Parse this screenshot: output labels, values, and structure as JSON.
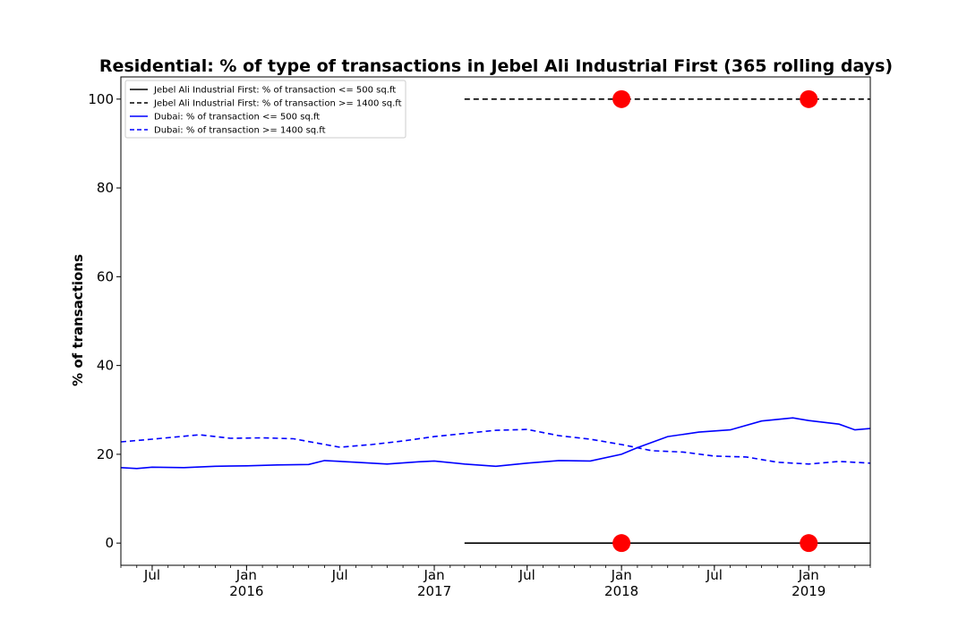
{
  "chart_data": {
    "type": "line",
    "title": "Residential: % of type of transactions in Jebel Ali Industrial First (365 rolling days)",
    "ylabel": "% of transactions",
    "xlabel": "",
    "ylim": [
      -5,
      105
    ],
    "xlim": [
      "2015-05-01",
      "2019-05-01"
    ],
    "yticks": [
      0,
      20,
      40,
      60,
      80,
      100
    ],
    "xticks": [
      {
        "date": "2015-07-01",
        "label": "Jul",
        "year": ""
      },
      {
        "date": "2016-01-01",
        "label": "Jan",
        "year": "2016"
      },
      {
        "date": "2016-07-01",
        "label": "Jul",
        "year": ""
      },
      {
        "date": "2017-01-01",
        "label": "Jan",
        "year": "2017"
      },
      {
        "date": "2017-07-01",
        "label": "Jul",
        "year": ""
      },
      {
        "date": "2018-01-01",
        "label": "Jan",
        "year": "2018"
      },
      {
        "date": "2018-07-01",
        "label": "Jul",
        "year": ""
      },
      {
        "date": "2019-01-01",
        "label": "Jan",
        "year": "2019"
      }
    ],
    "grid": false,
    "legend_position": "top-left",
    "series": [
      {
        "name": "Jebel Ali Industrial First: % of transaction <= 500 sq.ft",
        "color": "#000000",
        "dash": "solid",
        "x": [
          "2017-03-01",
          "2019-05-01"
        ],
        "y": [
          0,
          0
        ]
      },
      {
        "name": "Jebel Ali Industrial First: % of transaction >= 1400 sq.ft",
        "color": "#000000",
        "dash": "dashed",
        "x": [
          "2017-03-01",
          "2019-05-01"
        ],
        "y": [
          100,
          100
        ]
      },
      {
        "name": "Dubai: % of transaction <= 500 sq.ft",
        "color": "#0000ff",
        "dash": "solid",
        "x": [
          "2015-05-01",
          "2015-06-01",
          "2015-07-01",
          "2015-09-01",
          "2015-11-01",
          "2016-01-01",
          "2016-03-01",
          "2016-05-01",
          "2016-06-01",
          "2016-08-01",
          "2016-10-01",
          "2016-12-01",
          "2017-01-01",
          "2017-03-01",
          "2017-05-01",
          "2017-07-01",
          "2017-09-01",
          "2017-11-01",
          "2018-01-01",
          "2018-02-01",
          "2018-04-01",
          "2018-06-01",
          "2018-08-01",
          "2018-10-01",
          "2018-12-01",
          "2019-01-01",
          "2019-03-01",
          "2019-04-01",
          "2019-05-01"
        ],
        "y": [
          17.0,
          16.8,
          17.1,
          17.0,
          17.3,
          17.4,
          17.6,
          17.7,
          18.6,
          18.2,
          17.8,
          18.3,
          18.5,
          17.8,
          17.3,
          18.0,
          18.6,
          18.5,
          20.0,
          21.5,
          24.0,
          25.0,
          25.5,
          27.5,
          28.2,
          27.6,
          26.8,
          25.5,
          25.8
        ]
      },
      {
        "name": "Dubai: % of transaction >= 1400 sq.ft",
        "color": "#0000ff",
        "dash": "dashed",
        "x": [
          "2015-05-01",
          "2015-07-01",
          "2015-10-01",
          "2015-12-01",
          "2016-02-01",
          "2016-04-01",
          "2016-07-01",
          "2016-09-01",
          "2016-11-01",
          "2017-01-01",
          "2017-03-01",
          "2017-05-01",
          "2017-07-01",
          "2017-09-01",
          "2017-11-01",
          "2018-01-01",
          "2018-03-01",
          "2018-05-01",
          "2018-07-01",
          "2018-09-01",
          "2018-11-01",
          "2019-01-01",
          "2019-03-01",
          "2019-05-01"
        ],
        "y": [
          22.8,
          23.4,
          24.4,
          23.6,
          23.7,
          23.5,
          21.6,
          22.2,
          23.0,
          24.0,
          24.7,
          25.4,
          25.6,
          24.2,
          23.4,
          22.2,
          20.8,
          20.5,
          19.6,
          19.4,
          18.2,
          17.8,
          18.4,
          18.0
        ]
      }
    ],
    "markers": [
      {
        "x": "2018-01-01",
        "y": 100,
        "color": "#ff0000"
      },
      {
        "x": "2019-01-01",
        "y": 100,
        "color": "#ff0000"
      },
      {
        "x": "2018-01-01",
        "y": 0,
        "color": "#ff0000"
      },
      {
        "x": "2019-01-01",
        "y": 0,
        "color": "#ff0000"
      }
    ]
  }
}
